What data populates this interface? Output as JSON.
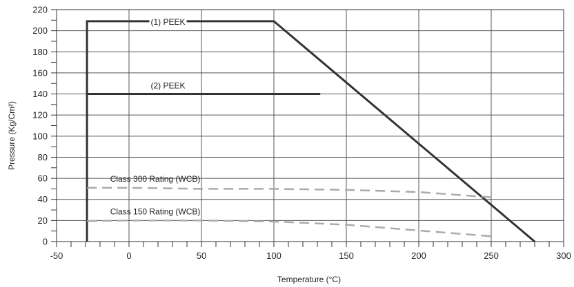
{
  "chart_data": {
    "type": "line",
    "xlabel": "Temperature (°C)",
    "ylabel": "Pressure (Kg/Cm²)",
    "xlim": [
      -50,
      300
    ],
    "ylim": [
      0,
      220
    ],
    "x_major_ticks": [
      -50,
      0,
      50,
      100,
      150,
      200,
      250,
      300
    ],
    "x_tick_labels": [
      "-50",
      "0",
      "50",
      "100",
      "150",
      "200",
      "250",
      "300"
    ],
    "y_major_ticks": [
      0,
      20,
      40,
      60,
      80,
      100,
      120,
      140,
      160,
      180,
      200,
      220
    ],
    "y_tick_labels": [
      "0",
      "20",
      "40",
      "60",
      "80",
      "100",
      "120",
      "140",
      "160",
      "180",
      "200",
      "220"
    ],
    "grid": true,
    "series": [
      {
        "name": "(1) PEEK",
        "color": "#333333",
        "style": "solid",
        "x": [
          -29,
          -29,
          100,
          280
        ],
        "y": [
          0,
          209,
          209,
          0
        ]
      },
      {
        "name": "(2) PEEK",
        "color": "#333333",
        "style": "solid",
        "x": [
          -29,
          132
        ],
        "y": [
          140,
          140
        ]
      },
      {
        "name": "Class 300 Rating (WCB)",
        "color": "#aaaaaa",
        "style": "dashed",
        "x": [
          -29,
          0,
          50,
          100,
          150,
          200,
          250
        ],
        "y": [
          51,
          51,
          50,
          50,
          49,
          47,
          42
        ]
      },
      {
        "name": "Class 150 Rating (WCB)",
        "color": "#aaaaaa",
        "style": "dashed",
        "x": [
          -29,
          0,
          50,
          100,
          150,
          200,
          250
        ],
        "y": [
          19.5,
          20,
          20,
          19,
          16,
          10.5,
          5
        ]
      }
    ]
  }
}
